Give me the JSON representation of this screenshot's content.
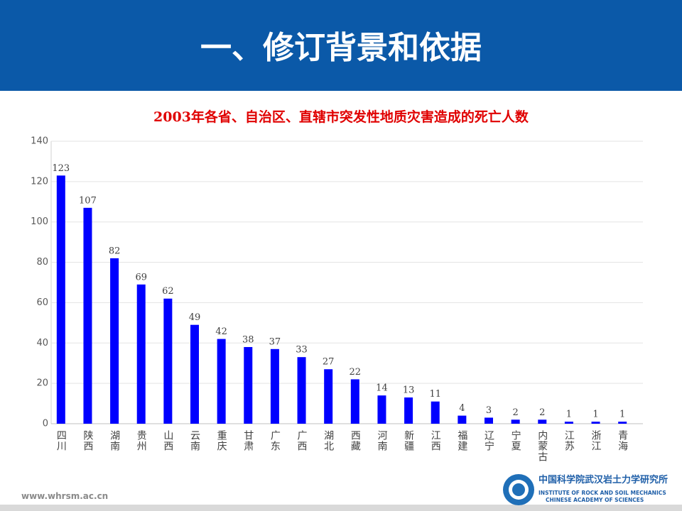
{
  "header": {
    "title": "一、修订背景和依据"
  },
  "chart_data": {
    "type": "bar",
    "title": "2003年各省、自治区、直辖市突发性地质灾害造成的死亡人数",
    "categories": [
      "四川",
      "陕西",
      "湖南",
      "贵州",
      "山西",
      "云南",
      "重庆",
      "甘肃",
      "广东",
      "广西",
      "湖北",
      "西藏",
      "河南",
      "新疆",
      "江西",
      "福建",
      "辽宁",
      "宁夏",
      "内蒙古",
      "江苏",
      "浙江",
      "青海"
    ],
    "values": [
      123,
      107,
      82,
      69,
      62,
      49,
      42,
      38,
      37,
      33,
      27,
      22,
      14,
      13,
      11,
      4,
      3,
      2,
      2,
      1,
      1,
      1
    ],
    "color": "#0000ff",
    "ylim": [
      0,
      140
    ],
    "yticks": [
      0,
      20,
      40,
      60,
      80,
      100,
      120,
      140
    ],
    "grid": true
  },
  "footer": {
    "url": "www.whrsm.ac.cn",
    "org_cn": "中国科学院武汉岩土力学研究所",
    "org_en_1": "INSTITUTE OF ROCK AND SOIL MECHANICS",
    "org_en_2": "CHINESE ACADEMY OF SCIENCES"
  }
}
